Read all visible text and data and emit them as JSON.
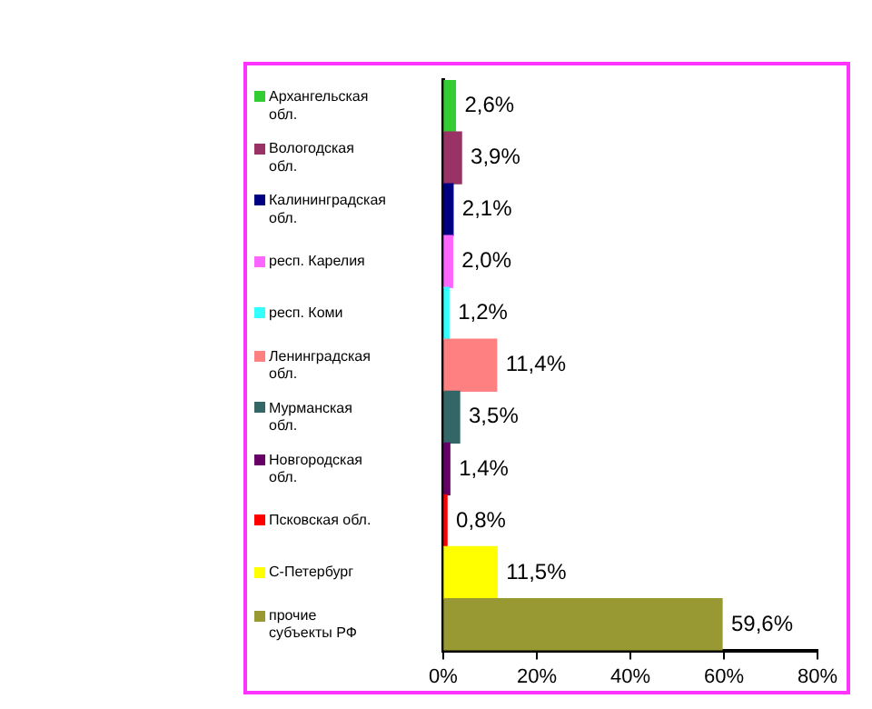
{
  "chart_data": {
    "type": "bar",
    "orientation": "horizontal",
    "categories": [
      "Архангельская обл.",
      "Вологодская обл.",
      "Калининградская обл.",
      "респ. Карелия",
      "респ. Коми",
      "Ленинградская обл.",
      "Мурманская обл.",
      "Новгородская обл.",
      "Псковская обл.",
      "С-Петербург",
      "прочие субъекты РФ"
    ],
    "values": [
      2.6,
      3.9,
      2.1,
      2.0,
      1.2,
      11.4,
      3.5,
      1.4,
      0.8,
      11.5,
      59.6
    ],
    "colors": [
      "#33cc33",
      "#993366",
      "#000080",
      "#ff66ff",
      "#33ffff",
      "#ff8080",
      "#336666",
      "#660066",
      "#ff0000",
      "#ffff00",
      "#999933"
    ],
    "value_labels": [
      "2,6%",
      "3,9%",
      "2,1%",
      "2,0%",
      "1,2%",
      "11,4%",
      "3,5%",
      "1,4%",
      "0,8%",
      "11,5%",
      "59,6%"
    ],
    "xlim": [
      0,
      80
    ],
    "xticks": [
      {
        "value": 0,
        "label": "0%"
      },
      {
        "value": 20,
        "label": "20%"
      },
      {
        "value": 40,
        "label": "40%"
      },
      {
        "value": 60,
        "label": "60%"
      },
      {
        "value": 80,
        "label": "80%"
      }
    ],
    "grid": false,
    "legend": false
  }
}
